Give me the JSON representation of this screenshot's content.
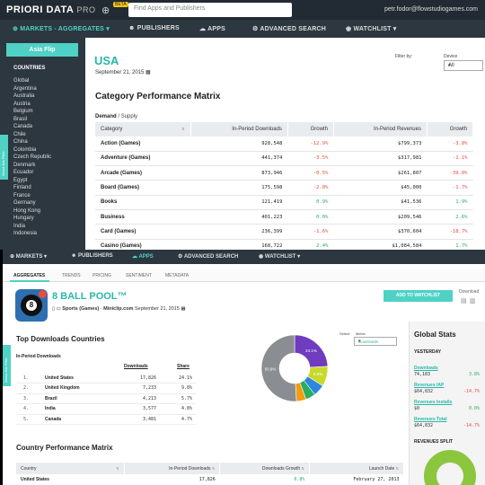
{
  "top": {
    "logo": "PRIORI DATA",
    "logo_suffix": "PRO",
    "beta": "BETA",
    "search_placeholder": "Find Apps and Publishers",
    "user_email": "petr.fodor@flowstudiogames.com",
    "nav": [
      {
        "label": "MARKETS - AGGREGATES"
      },
      {
        "label": "PUBLISHERS"
      },
      {
        "label": "APPS"
      },
      {
        "label": "ADVANCED SEARCH"
      },
      {
        "label": "WATCHLIST"
      }
    ],
    "sidebar": {
      "flip_button": "Asia Flip",
      "countries_heading": "COUNTRIES",
      "countries": [
        "Global",
        "Argentina",
        "Australia",
        "Austria",
        "Belgium",
        "Brasil",
        "Canada",
        "Chile",
        "China",
        "Colombia",
        "Czech Republic",
        "Denmark",
        "Ecuador",
        "Egypt",
        "Finland",
        "France",
        "Germany",
        "Hong Kong",
        "Hungary",
        "India",
        "Indonesia"
      ],
      "side_tab": "About this Filter"
    },
    "title": "USA",
    "date": "September 21, 2015",
    "filter_by": "Filter by:",
    "device_label": "Device",
    "device_value": "All",
    "matrix_title": "Category Performance Matrix",
    "demand": "Demand",
    "supply": "Supply",
    "table_headers": [
      "Category",
      "In-Period Downloads",
      "Growth",
      "In-Period Revenues",
      "Growth"
    ],
    "rows": [
      {
        "category": "Action (Games)",
        "downloads": "928,548",
        "dgrowth": "-12.9%",
        "revenues": "$799,373",
        "rgrowth": "-3.8%"
      },
      {
        "category": "Adventure (Games)",
        "downloads": "441,374",
        "dgrowth": "-3.5%",
        "revenues": "$317,981",
        "rgrowth": "-1.1%"
      },
      {
        "category": "Arcade (Games)",
        "downloads": "873,946",
        "dgrowth": "-0.5%",
        "revenues": "$261,807",
        "rgrowth": "-39.0%"
      },
      {
        "category": "Board (Games)",
        "downloads": "175,598",
        "dgrowth": "-2.8%",
        "revenues": "$45,000",
        "rgrowth": "-1.7%"
      },
      {
        "category": "Books",
        "downloads": "121,419",
        "dgrowth": "0.9%",
        "revenues": "$41,536",
        "rgrowth": "1.9%"
      },
      {
        "category": "Business",
        "downloads": "401,223",
        "dgrowth": "0.0%",
        "revenues": "$209,546",
        "rgrowth": "2.6%"
      },
      {
        "category": "Card (Games)",
        "downloads": "236,399",
        "dgrowth": "-1.6%",
        "revenues": "$370,604",
        "rgrowth": "-18.7%"
      },
      {
        "category": "Casino (Games)",
        "downloads": "168,722",
        "dgrowth": "2.4%",
        "revenues": "$1,084,584",
        "rgrowth": "1.7%"
      }
    ]
  },
  "bottom": {
    "nav": [
      {
        "label": "MARKETS"
      },
      {
        "label": "PUBLISHERS"
      },
      {
        "label": "APPS"
      },
      {
        "label": "ADVANCED SEARCH"
      },
      {
        "label": "WATCHLIST"
      }
    ],
    "subnav": [
      "AGGREGATES",
      "TRENDS",
      "PRICING",
      "SENTIMENT",
      "METADATA"
    ],
    "app_name": "8 BALL POOL™",
    "category": "Sports (Games)",
    "publisher": "Miniclip.com",
    "date": "September 21, 2015",
    "watch_button": "ADD TO WATCHLIST",
    "download_label": "Download",
    "side_tab": "About this Filter",
    "tdc_title": "Top Downloads Countries",
    "ipd_label": "In-Period Downloads",
    "col_downloads": "Downloads",
    "col_share": "Share",
    "countries": [
      {
        "rank": "1.",
        "name": "United States",
        "downloads": "17,826",
        "share": "24.1%"
      },
      {
        "rank": "2.",
        "name": "United Kingdom",
        "downloads": "7,233",
        "share": "9.8%"
      },
      {
        "rank": "3.",
        "name": "Brazil",
        "downloads": "4,213",
        "share": "5.7%"
      },
      {
        "rank": "4.",
        "name": "India",
        "downloads": "3,577",
        "share": "4.8%"
      },
      {
        "rank": "5.",
        "name": "Canada",
        "downloads": "3,481",
        "share": "4.7%"
      }
    ],
    "select_label": "Select:",
    "metric_label": "Metric",
    "metric_value": "Downloads",
    "donut": {
      "labels": [
        "24.1%",
        "9.8%",
        "50.9%"
      ],
      "slices": [
        {
          "value": 24.1,
          "color": "#6f3bbf"
        },
        {
          "value": 9.8,
          "color": "#c8d92a"
        },
        {
          "value": 5.7,
          "color": "#2e86de"
        },
        {
          "value": 4.8,
          "color": "#27ae60"
        },
        {
          "value": 4.7,
          "color": "#f39c12"
        },
        {
          "value": 50.9,
          "color": "#8a8d91"
        }
      ]
    },
    "global_stats": {
      "title": "Global Stats",
      "yesterday": "YESTERDAY",
      "items": [
        {
          "label": "Downloads",
          "value": "74,183",
          "change": "3.8%",
          "dir": "pos"
        },
        {
          "label": "Revenues IAP",
          "value": "$64,832",
          "change": "-14.7%",
          "dir": "neg"
        },
        {
          "label": "Revenues Installs",
          "value": "$0",
          "change": "0.0%",
          "dir": "pos"
        },
        {
          "label": "Revenues Total",
          "value": "$64,832",
          "change": "-14.7%",
          "dir": "neg"
        }
      ],
      "revenues_split": "REVENUES SPLIT"
    },
    "matrix_title": "Country Performance Matrix",
    "table_headers": [
      "Country",
      "In-Period Downloads",
      "Downloads Growth",
      "Launch Date"
    ],
    "rows": [
      {
        "country": "United States",
        "downloads": "17,826",
        "growth": "0.8%",
        "launch": "February 27, 2013"
      }
    ]
  }
}
